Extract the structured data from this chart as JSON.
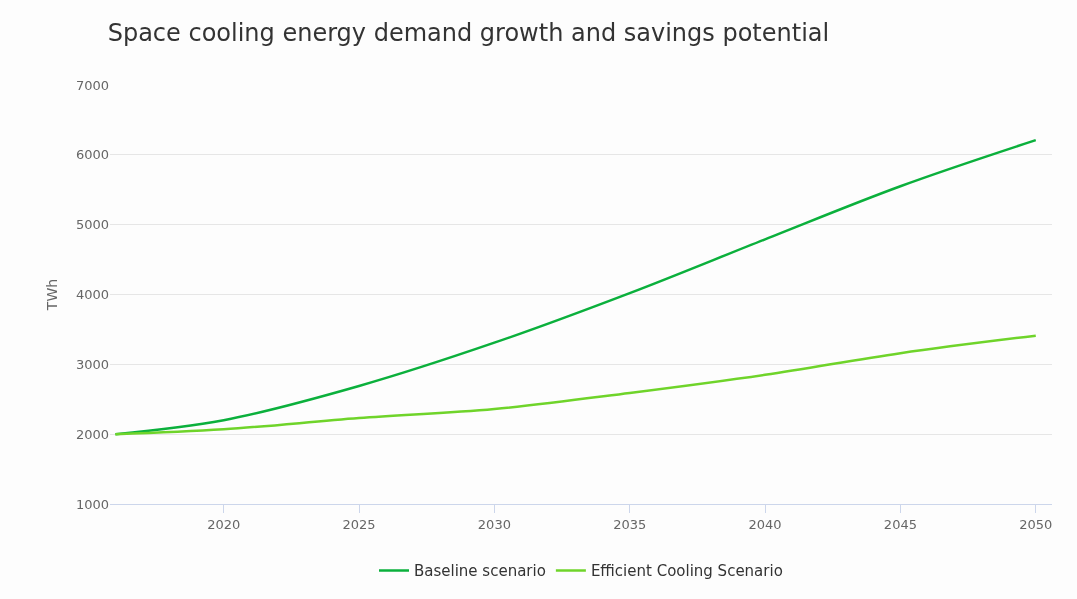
{
  "chart_data": {
    "type": "line",
    "title": "Space cooling energy demand growth and savings potential",
    "ylabel": "TWh",
    "x": [
      2016,
      2020,
      2025,
      2030,
      2035,
      2040,
      2045,
      2050
    ],
    "series": [
      {
        "name": "Baseline scenario",
        "color": "#0bb03c",
        "values": [
          2000,
          2200,
          2690,
          3310,
          4020,
          4790,
          5550,
          6210
        ]
      },
      {
        "name": "Efficient Cooling Scenario",
        "color": "#6fd42a",
        "values": [
          2000,
          2070,
          2230,
          2360,
          2590,
          2850,
          3160,
          3410
        ]
      }
    ],
    "xlim": [
      2015.8,
      2050.6
    ],
    "xticks": [
      2020,
      2025,
      2030,
      2035,
      2040,
      2045,
      2050
    ],
    "ylim": [
      1000,
      7000
    ],
    "yticks": [
      1000,
      2000,
      3000,
      4000,
      5000,
      6000,
      7000
    ],
    "grid": "y",
    "legend": "bottom",
    "marker": "none",
    "line_style": "solid"
  }
}
